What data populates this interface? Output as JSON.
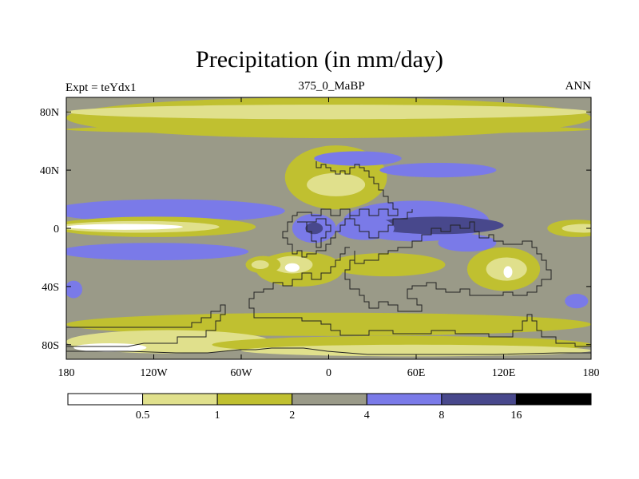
{
  "chart_data": {
    "type": "heatmap",
    "title": "Precipitation (in mm/day)",
    "left_string": "Expt = teYdx1",
    "center_string": "375_0_MaBP",
    "right_string": "ANN",
    "x_ticks": [
      {
        "value": -180,
        "label": "180"
      },
      {
        "value": -120,
        "label": "120W"
      },
      {
        "value": -60,
        "label": "60W"
      },
      {
        "value": 0,
        "label": "0"
      },
      {
        "value": 60,
        "label": "60E"
      },
      {
        "value": 120,
        "label": "120E"
      },
      {
        "value": 180,
        "label": "180"
      }
    ],
    "y_ticks": [
      {
        "value": 80,
        "label": "80N"
      },
      {
        "value": 40,
        "label": "40N"
      },
      {
        "value": 0,
        "label": "0"
      },
      {
        "value": -40,
        "label": "40S"
      },
      {
        "value": -80,
        "label": "80S"
      }
    ],
    "xlim": [
      -180,
      180
    ],
    "ylim": [
      -90,
      90
    ],
    "colorbar": {
      "levels": [
        "0.5",
        "1",
        "2",
        "4",
        "8",
        "16"
      ],
      "colors": [
        "#ffffff",
        "#e0e08c",
        "#c0c030",
        "#9a9a88",
        "#7a7ae8",
        "#48488c",
        "#000000"
      ]
    },
    "base_class_value": "2-4",
    "regions": [
      {
        "name": "arctic-yellow-band",
        "class": "1-2",
        "cx": 0,
        "cy": 76,
        "rx": 180,
        "ry": 14
      },
      {
        "name": "arctic-light-band",
        "class": "0.5-1",
        "cx": 0,
        "cy": 80,
        "rx": 180,
        "ry": 5
      },
      {
        "name": "north-lat-band",
        "class": "1-2",
        "cx": 0,
        "cy": 68,
        "rx": 180,
        "ry": 3
      },
      {
        "name": "north-pacific-wet",
        "class": "4-8",
        "cx": -110,
        "cy": 12,
        "rx": 80,
        "ry": 8
      },
      {
        "name": "south-pacific-wet",
        "class": "4-8",
        "cx": -120,
        "cy": -16,
        "rx": 65,
        "ry": 6
      },
      {
        "name": "pacific-dry-band",
        "class": "1-2",
        "cx": -120,
        "cy": 1,
        "rx": 70,
        "ry": 7
      },
      {
        "name": "pacific-very-dry",
        "class": "0.5-1",
        "cx": -130,
        "cy": 1,
        "rx": 55,
        "ry": 4
      },
      {
        "name": "pacific-driest",
        "class": "<0.5",
        "cx": -140,
        "cy": 1,
        "rx": 40,
        "ry": 2
      },
      {
        "name": "east-pacific-dry",
        "class": "1-2",
        "cx": 170,
        "cy": 0,
        "rx": 20,
        "ry": 6
      },
      {
        "name": "east-pacific-very-dry",
        "class": "0.5-1",
        "cx": 175,
        "cy": 0,
        "rx": 15,
        "ry": 3
      },
      {
        "name": "continent-north-dry",
        "class": "1-2",
        "cx": 5,
        "cy": 35,
        "rx": 35,
        "ry": 22
      },
      {
        "name": "continent-north-desert",
        "class": "0.5-1",
        "cx": 5,
        "cy": 30,
        "rx": 20,
        "ry": 8
      },
      {
        "name": "north-storm-track",
        "class": "4-8",
        "cx": 20,
        "cy": 48,
        "rx": 30,
        "ry": 5
      },
      {
        "name": "asia-storm-track",
        "class": "4-8",
        "cx": 75,
        "cy": 40,
        "rx": 40,
        "ry": 5
      },
      {
        "name": "tethys-wet",
        "class": "4-8",
        "cx": 60,
        "cy": 5,
        "rx": 50,
        "ry": 14
      },
      {
        "name": "tethys-very-wet",
        "class": "8-16",
        "cx": 75,
        "cy": 2,
        "rx": 45,
        "ry": 6
      },
      {
        "name": "gulf-wet",
        "class": "4-8",
        "cx": -10,
        "cy": 0,
        "rx": 15,
        "ry": 10
      },
      {
        "name": "gulf-very-wet",
        "class": "8-16",
        "cx": -10,
        "cy": 0,
        "rx": 6,
        "ry": 4
      },
      {
        "name": "tropic-wet-mid",
        "class": "4-8",
        "cx": 25,
        "cy": 0,
        "rx": 20,
        "ry": 8
      },
      {
        "name": "south-continent-dry",
        "class": "1-2",
        "cx": -20,
        "cy": -28,
        "rx": 30,
        "ry": 12
      },
      {
        "name": "south-continent-desert",
        "class": "0.5-1",
        "cx": -25,
        "cy": -25,
        "rx": 14,
        "ry": 6
      },
      {
        "name": "south-continent-driest",
        "class": "<0.5",
        "cx": -25,
        "cy": -27,
        "rx": 5,
        "ry": 3
      },
      {
        "name": "southwest-dry",
        "class": "1-2",
        "cx": -45,
        "cy": -25,
        "rx": 12,
        "ry": 6
      },
      {
        "name": "southwest-very-dry",
        "class": "0.5-1",
        "cx": -47,
        "cy": -25,
        "rx": 6,
        "ry": 3
      },
      {
        "name": "east-continent-dry",
        "class": "1-2",
        "cx": 120,
        "cy": -28,
        "rx": 25,
        "ry": 15
      },
      {
        "name": "east-continent-desert",
        "class": "0.5-1",
        "cx": 122,
        "cy": -28,
        "rx": 14,
        "ry": 8
      },
      {
        "name": "east-continent-driest",
        "class": "<0.5",
        "cx": 123,
        "cy": -30,
        "rx": 3,
        "ry": 4
      },
      {
        "name": "central-south-dry",
        "class": "1-2",
        "cx": 40,
        "cy": -25,
        "rx": 40,
        "ry": 8
      },
      {
        "name": "indian-wet",
        "class": "4-8",
        "cx": 95,
        "cy": -10,
        "rx": 20,
        "ry": 6
      },
      {
        "name": "south-storm-band",
        "class": "1-2",
        "cx": 0,
        "cy": -66,
        "rx": 180,
        "ry": 8
      },
      {
        "name": "south-polar-dry",
        "class": "0.5-1",
        "cx": -110,
        "cy": -78,
        "rx": 70,
        "ry": 8
      },
      {
        "name": "south-polar-driest",
        "class": "<0.5",
        "cx": -150,
        "cy": -82,
        "rx": 25,
        "ry": 3
      },
      {
        "name": "south-polar-band",
        "class": "1-2",
        "cx": 50,
        "cy": -80,
        "rx": 130,
        "ry": 6
      },
      {
        "name": "south-polar-light",
        "class": "0.5-1",
        "cx": 60,
        "cy": -84,
        "rx": 120,
        "ry": 4
      },
      {
        "name": "south-west-wet",
        "class": "4-8",
        "cx": -175,
        "cy": -42,
        "rx": 6,
        "ry": 6
      },
      {
        "name": "south-east-wet",
        "class": "4-8",
        "cx": 170,
        "cy": -50,
        "rx": 8,
        "ry": 5
      }
    ]
  }
}
